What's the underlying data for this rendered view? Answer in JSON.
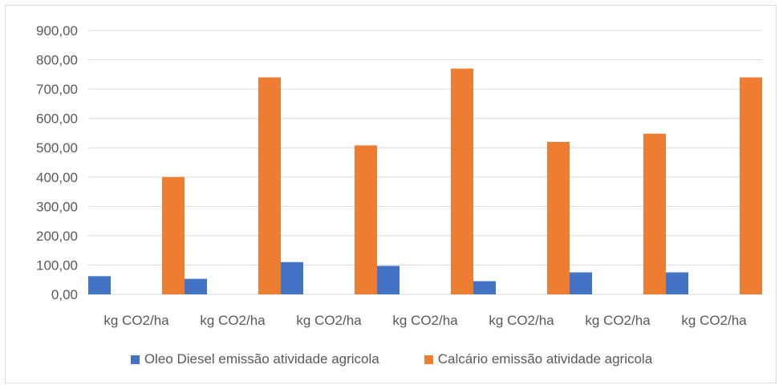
{
  "chart_data": {
    "type": "bar",
    "categories": [
      "kg CO2/ha",
      "kg CO2/ha",
      "kg CO2/ha",
      "kg CO2/ha",
      "kg CO2/ha",
      "kg CO2/ha",
      "kg CO2/ha"
    ],
    "series": [
      {
        "name": "Oleo Diesel emissão atividade agricola",
        "color": "#4472c4",
        "values": [
          62,
          53,
          110,
          97,
          45,
          75,
          75
        ]
      },
      {
        "name": "Calcário emissão atividade agricola",
        "color": "#ed7d31",
        "values": [
          400,
          740,
          508,
          770,
          520,
          548,
          740
        ]
      }
    ],
    "y_ticks": [
      "0,00",
      "100,00",
      "200,00",
      "300,00",
      "400,00",
      "500,00",
      "600,00",
      "700,00",
      "800,00",
      "900,00"
    ],
    "ylim": [
      0,
      900
    ],
    "grid": true,
    "legend_position": "bottom",
    "title": "",
    "xlabel": "",
    "ylabel": ""
  }
}
